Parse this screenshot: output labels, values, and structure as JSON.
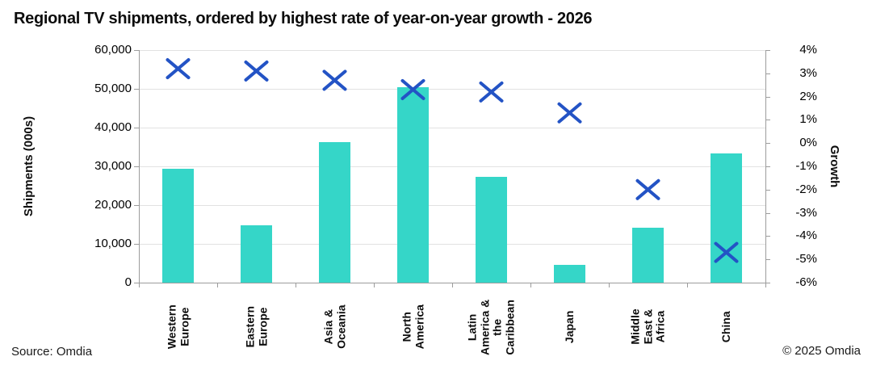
{
  "title": "Regional TV shipments, ordered by highest rate of year-on-year growth - 2026",
  "source": "Source: Omdia",
  "copyright": "© 2025 Omdia",
  "colors": {
    "bar": "#35d6c8",
    "marker": "#2353c5",
    "gridline": "#e2e2e2",
    "axis": "#9c9c9c",
    "text": "#000000"
  },
  "chart_data": {
    "type": "bar",
    "title": "Regional TV shipments, ordered by highest rate of year-on-year growth - 2026",
    "categories": [
      "Western Europe",
      "Eastern Europe",
      "Asia & Oceania",
      "North America",
      "Latin America & the Caribbean",
      "Japan",
      "Middle East & Africa",
      "China"
    ],
    "category_label_lines": [
      [
        "Western",
        "Europe"
      ],
      [
        "Eastern",
        "Europe"
      ],
      [
        "Asia &",
        "Oceania"
      ],
      [
        "North",
        "America"
      ],
      [
        "Latin",
        "America &",
        "the",
        "Caribbean"
      ],
      [
        "Japan"
      ],
      [
        "Middle",
        "East &",
        "Africa"
      ],
      [
        "China"
      ]
    ],
    "series": [
      {
        "name": "Shipments (000s)",
        "type": "bar",
        "axis": "left",
        "values": [
          29300,
          14700,
          36300,
          50500,
          27300,
          4600,
          14100,
          33400
        ]
      },
      {
        "name": "Growth",
        "type": "scatter-x-markers",
        "axis": "right",
        "values": [
          3.2,
          3.1,
          2.7,
          2.3,
          2.2,
          1.3,
          -2.0,
          -4.7
        ]
      }
    ],
    "left_axis": {
      "label": "Shipments (000s)",
      "min": 0,
      "max": 60000,
      "ticks": [
        "60,000",
        "50,000",
        "40,000",
        "30,000",
        "20,000",
        "10,000",
        "0"
      ]
    },
    "right_axis": {
      "label": "Growth",
      "min": -6,
      "max": 4,
      "ticks": [
        "4%",
        "3%",
        "2%",
        "1%",
        "0%",
        "-1%",
        "-2%",
        "-3%",
        "-4%",
        "-5%",
        "-6%"
      ]
    },
    "grid": true,
    "legend": "none"
  }
}
